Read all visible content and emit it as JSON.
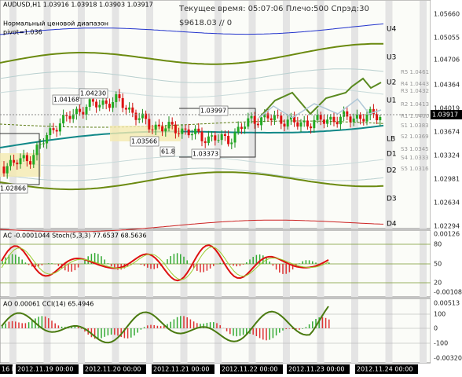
{
  "main": {
    "header": "AUDUSD,H1  1.03916 1.03918 1.03903 1.03917",
    "indicator_name": "Нормальный ценовой диапазон",
    "pivot": "pivot=1.036",
    "status": "Текущее время: 05:07:06 Плечо:500 Спрэд:30",
    "balance": "$9618.03    // 0",
    "price_axis": [
      "1.05660",
      "1.05055",
      "1.04706",
      "1.04364",
      "1.04019",
      "1.03674",
      "1.03324",
      "1.02981",
      "1.02634",
      "1.02294"
    ],
    "current_price": "1.03917",
    "levels": [
      "U4",
      "U3",
      "U2",
      "U1",
      "LB",
      "D1",
      "D2",
      "D3",
      "D4"
    ],
    "pivots": [
      "R5 1.0461",
      "R4 1.0443",
      "R3 1.0432",
      "R2 1.0413",
      "R1 1.0400",
      "S1 1.0383",
      "S2 1.0369",
      "S3 1.0345",
      "S4 1.0333",
      "S5 1.0316"
    ],
    "price_labels": [
      "1.04168",
      "1.04230",
      "1.03997",
      "1.03566",
      "1.03373",
      "61.8",
      "1.02866"
    ]
  },
  "ac_panel": {
    "header": "AC -0.0001044  Stoch(5,3,3) 77.6537 68.5636",
    "axis": [
      "0.00126",
      "80",
      "50",
      "20",
      "-0.00108"
    ]
  },
  "ao_panel": {
    "header": "AO 0.00061  CCI(14) 65.4946",
    "axis": [
      "0.00513",
      "100",
      "0",
      "-100",
      "-0.00320"
    ]
  },
  "time_axis": [
    "16 N",
    "2012.11.19 00:00",
    "2012.11.20 00:00",
    "2012.11.21 00:00",
    "2012.11.22 00:00",
    "2012.11.23 00:00",
    "2012.11.24 00:00"
  ]
}
